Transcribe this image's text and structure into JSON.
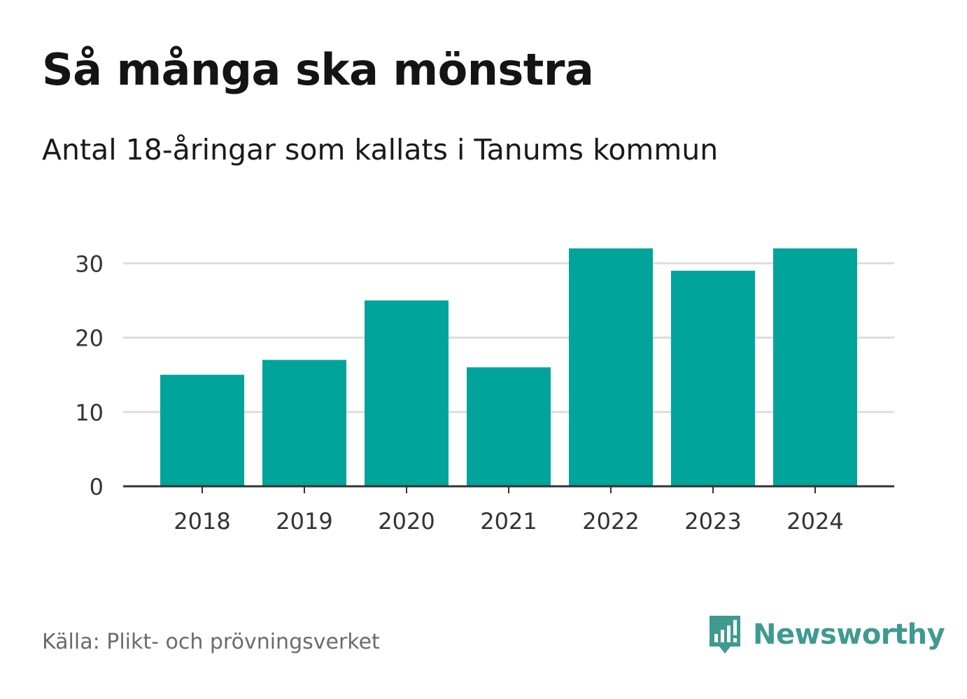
{
  "header": {
    "title": "Så många ska mönstra",
    "subtitle": "Antal 18-åringar som kallats i Tanums kommun"
  },
  "footer": {
    "source": "Källa: Plikt- och prövningsverket",
    "brand": "Newsworthy",
    "brand_icon": "newsworthy-logo-icon"
  },
  "colors": {
    "bar": "#00a49a",
    "grid": "#dddddd",
    "axis": "#333333",
    "text": "#333333",
    "brand": "#3f9a90"
  },
  "chart_data": {
    "type": "bar",
    "title": "Så många ska mönstra",
    "subtitle": "Antal 18-åringar som kallats i Tanums kommun",
    "categories": [
      "2018",
      "2019",
      "2020",
      "2021",
      "2022",
      "2023",
      "2024"
    ],
    "values": [
      15,
      17,
      25,
      16,
      32,
      29,
      32
    ],
    "yticks": [
      0,
      10,
      20,
      30
    ],
    "ylim": [
      0,
      32
    ],
    "xlabel": "",
    "ylabel": "",
    "grid": true
  }
}
